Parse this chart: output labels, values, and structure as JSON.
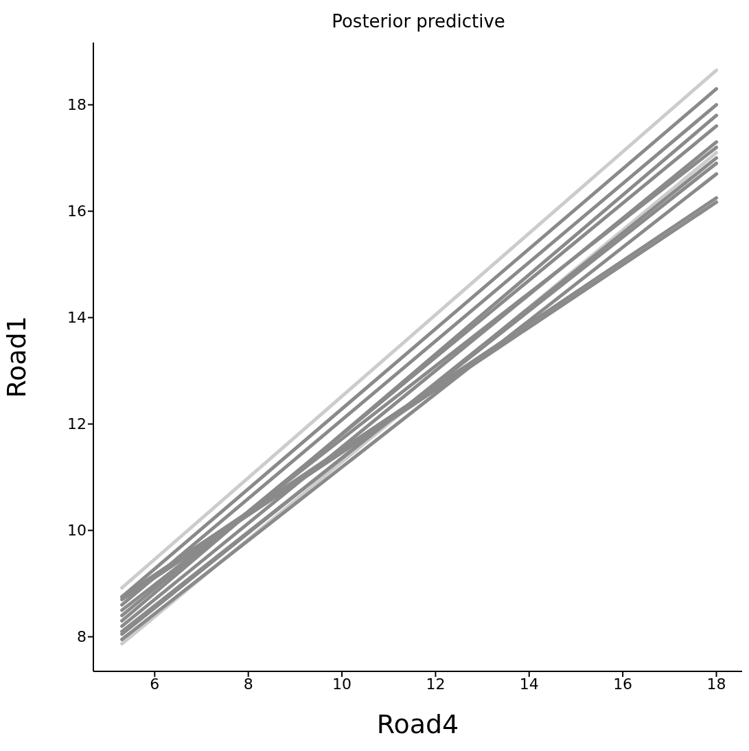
{
  "chart_data": {
    "type": "line",
    "title": "Posterior predictive",
    "xlabel": "Road4",
    "ylabel": "Road1",
    "x": [
      5.3,
      18
    ],
    "xlim": [
      4.69,
      18.55
    ],
    "xticks": [
      6,
      8,
      10,
      12,
      14,
      16,
      18
    ],
    "ylim": [
      7.35,
      19.17
    ],
    "yticks": [
      8,
      10,
      12,
      14,
      16,
      18
    ],
    "grid": false,
    "legend": false,
    "marker": "none",
    "line_style": "solid",
    "series": [
      {
        "color": "#cccccc",
        "values": [
          8.92,
          18.65
        ]
      },
      {
        "color": "#cccccc",
        "values": [
          7.87,
          17.1
        ]
      },
      {
        "color": "#8a8a8a",
        "values": [
          8.75,
          18.3
        ]
      },
      {
        "color": "#8a8a8a",
        "values": [
          8.6,
          18.0
        ]
      },
      {
        "color": "#8a8a8a",
        "values": [
          8.3,
          17.8
        ]
      },
      {
        "color": "#8a8a8a",
        "values": [
          8.4,
          17.6
        ]
      },
      {
        "color": "#8a8a8a",
        "values": [
          8.2,
          17.3
        ]
      },
      {
        "color": "#8a8a8a",
        "values": [
          8.5,
          17.2
        ]
      },
      {
        "color": "#8a8a8a",
        "values": [
          8.05,
          17.0
        ]
      },
      {
        "color": "#8a8a8a",
        "values": [
          8.1,
          16.9
        ]
      },
      {
        "color": "#8a8a8a",
        "values": [
          7.95,
          16.7
        ]
      },
      {
        "color": "#8a8a8a",
        "values": [
          8.75,
          16.25
        ]
      },
      {
        "color": "#8a8a8a",
        "values": [
          8.7,
          16.17
        ]
      }
    ]
  }
}
